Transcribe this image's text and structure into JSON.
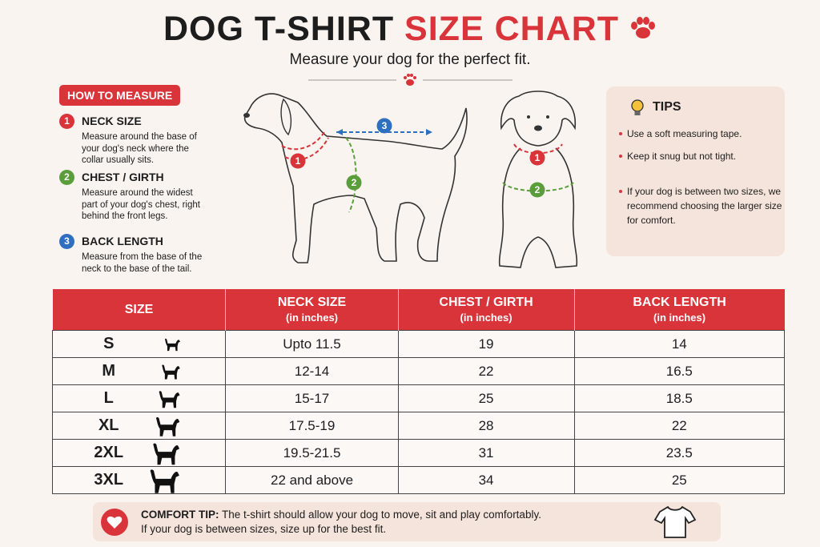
{
  "header": {
    "title_dark": "DOG T-SHIRT",
    "title_red": "SIZE CHART",
    "subtitle": "Measure your dog for the perfect fit."
  },
  "how_to_measure": {
    "label": "HOW TO MEASURE",
    "steps": [
      {
        "number": "1",
        "title": "NECK SIZE",
        "text": "Measure around the base of your dog's neck where the collar usually sits.",
        "color": "#d9343a"
      },
      {
        "number": "2",
        "title": "CHEST / GIRTH",
        "text": "Measure around the widest part of your dog's chest, right behind the front legs.",
        "color": "#5a9e3c"
      },
      {
        "number": "3",
        "title": "BACK LENGTH",
        "text": "Measure from the base of the neck to the base of the tail.",
        "color": "#2f6fc0"
      }
    ]
  },
  "tips": {
    "title": "TIPS",
    "items": [
      "Use a soft measuring tape.",
      "Keep it snug but not tight.",
      "If your dog is between two sizes, we recommend choosing the larger size for comfort."
    ]
  },
  "table": {
    "columns": [
      {
        "title": "SIZE"
      },
      {
        "title": "NECK SIZE",
        "unit": "(in inches)"
      },
      {
        "title": "CHEST / GIRTH",
        "unit": "(in inches)"
      },
      {
        "title": "BACK LENGTH",
        "unit": "(in inches)"
      }
    ],
    "rows": [
      [
        "S",
        "Upto 11.5",
        "19",
        "14"
      ],
      [
        "M",
        "12-14",
        "22",
        "16.5"
      ],
      [
        "L",
        "15-17",
        "25",
        "18.5"
      ],
      [
        "XL",
        "17.5-19",
        "28",
        "22"
      ],
      [
        "2XL",
        "19.5-21.5",
        "31",
        "23.5"
      ],
      [
        "3XL",
        "22 and above",
        "34",
        "25"
      ]
    ]
  },
  "comfort_tip": {
    "label": "COMFORT TIP:",
    "line1": "The t-shirt should allow your dog to move, sit and play comfortably.",
    "line2": "If your dog is between sizes, size up for the best fit."
  }
}
